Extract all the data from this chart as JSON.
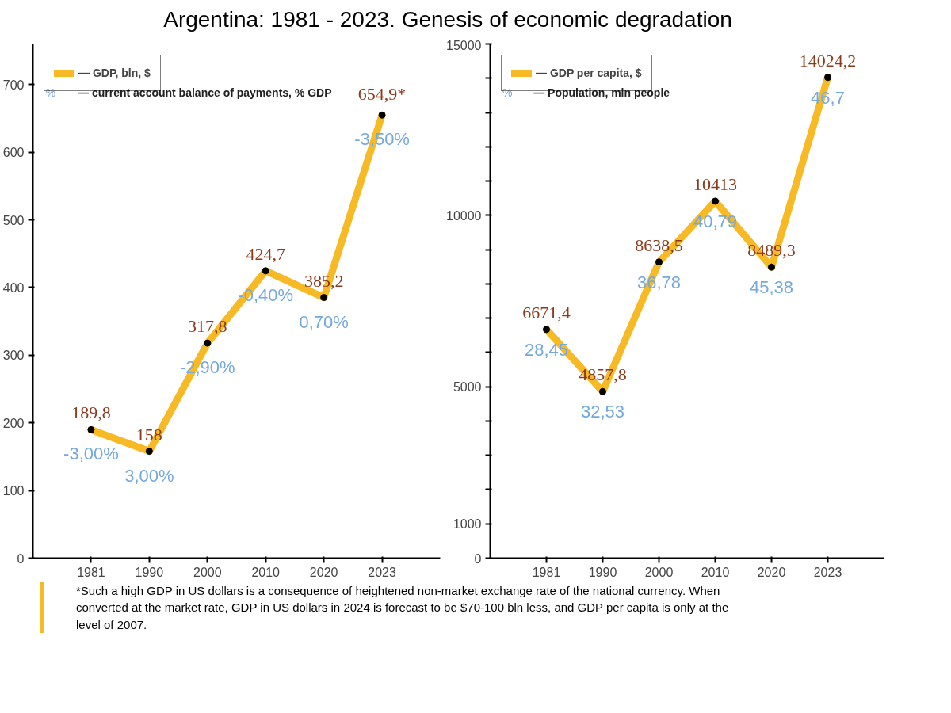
{
  "chart_data": [
    {
      "type": "line",
      "title": "Argentina: 1981 - 2023. Genesis of economic degradation",
      "categories": [
        "1981",
        "1990",
        "2000",
        "2010",
        "2020",
        "2023"
      ],
      "series": [
        {
          "name": "— GDP, bln, $",
          "color": "#f7b924",
          "values": [
            189.8,
            158,
            317.8,
            424.7,
            385.2,
            654.9
          ],
          "value_labels": [
            "189,8",
            "158",
            "317,8",
            "424,7",
            "385,2",
            "654,9*"
          ]
        }
      ],
      "annotations": [
        "%",
        "— current account balance of payments, % GDP",
        {
          "text": "-3,00%",
          "x": "1981",
          "y": 189.8
        },
        {
          "text": "3,00%",
          "x": "1990",
          "y": 158
        },
        {
          "text": "-2,90%",
          "x": "2000",
          "y": 317.8
        },
        {
          "text": "-0,40%",
          "x": "2010",
          "y": 424.7
        },
        {
          "text": "0,70%",
          "x": "2020",
          "y": 385.2
        },
        {
          "text": "-3,50%",
          "x": "2023",
          "y": 654.9
        }
      ],
      "ylim": [
        0,
        760
      ],
      "yticks": [
        0,
        100,
        200,
        300,
        400,
        500,
        600,
        700
      ],
      "marker": "circle",
      "grid": false,
      "legend": "top left"
    },
    {
      "type": "line",
      "categories": [
        "1981",
        "1990",
        "2000",
        "2010",
        "2020",
        "2023"
      ],
      "series": [
        {
          "name": "— GDP per capita, $",
          "color": "#f7b924",
          "values": [
            6671.4,
            4857.8,
            8638.5,
            10413,
            8489.3,
            14024.2
          ],
          "value_labels": [
            "6671,4",
            "4857,8",
            "8638,5",
            "10413",
            "8489,3",
            "14024,2"
          ]
        }
      ],
      "annotations": [
        "%",
        "— Population, mln people",
        {
          "text": "28,45",
          "x": "1981",
          "y": 6671.4
        },
        {
          "text": "32,53",
          "x": "1990",
          "y": 4857.8
        },
        {
          "text": "36,78",
          "x": "2000",
          "y": 8638.5
        },
        {
          "text": "40,79",
          "x": "2010",
          "y": 10413
        },
        {
          "text": "45,38",
          "x": "2020",
          "y": 8489.3
        },
        {
          "text": "46,7",
          "x": "2023",
          "y": 14024.2
        }
      ],
      "ylim": [
        0,
        15000
      ],
      "yticks": [
        0,
        1000,
        {
          "value": 2000,
          "label": null
        },
        {
          "value": 3000,
          "label": null
        },
        {
          "value": 4000,
          "label": null
        },
        5000,
        {
          "value": 6000,
          "label": null
        },
        {
          "value": 7000,
          "label": null
        },
        {
          "value": 8000,
          "label": null
        },
        {
          "value": 9000,
          "label": null
        },
        10000,
        {
          "value": 11000,
          "label": null
        },
        {
          "value": 12000,
          "label": null
        },
        {
          "value": 13000,
          "label": null
        },
        {
          "value": 14000,
          "label": null
        },
        15000
      ],
      "marker": "circle",
      "grid": false,
      "legend": "top left"
    },
    {
      "type": "other",
      "annotations": [
        "*Such a high GDP in US dollars is a consequence of heightened non-market exchange rate of the national currency. When converted at the market rate, GDP in US dollars in 2024 is forecast to be $70-100 bln less, and GDP per capita is only at the level of 2007."
      ]
    }
  ]
}
